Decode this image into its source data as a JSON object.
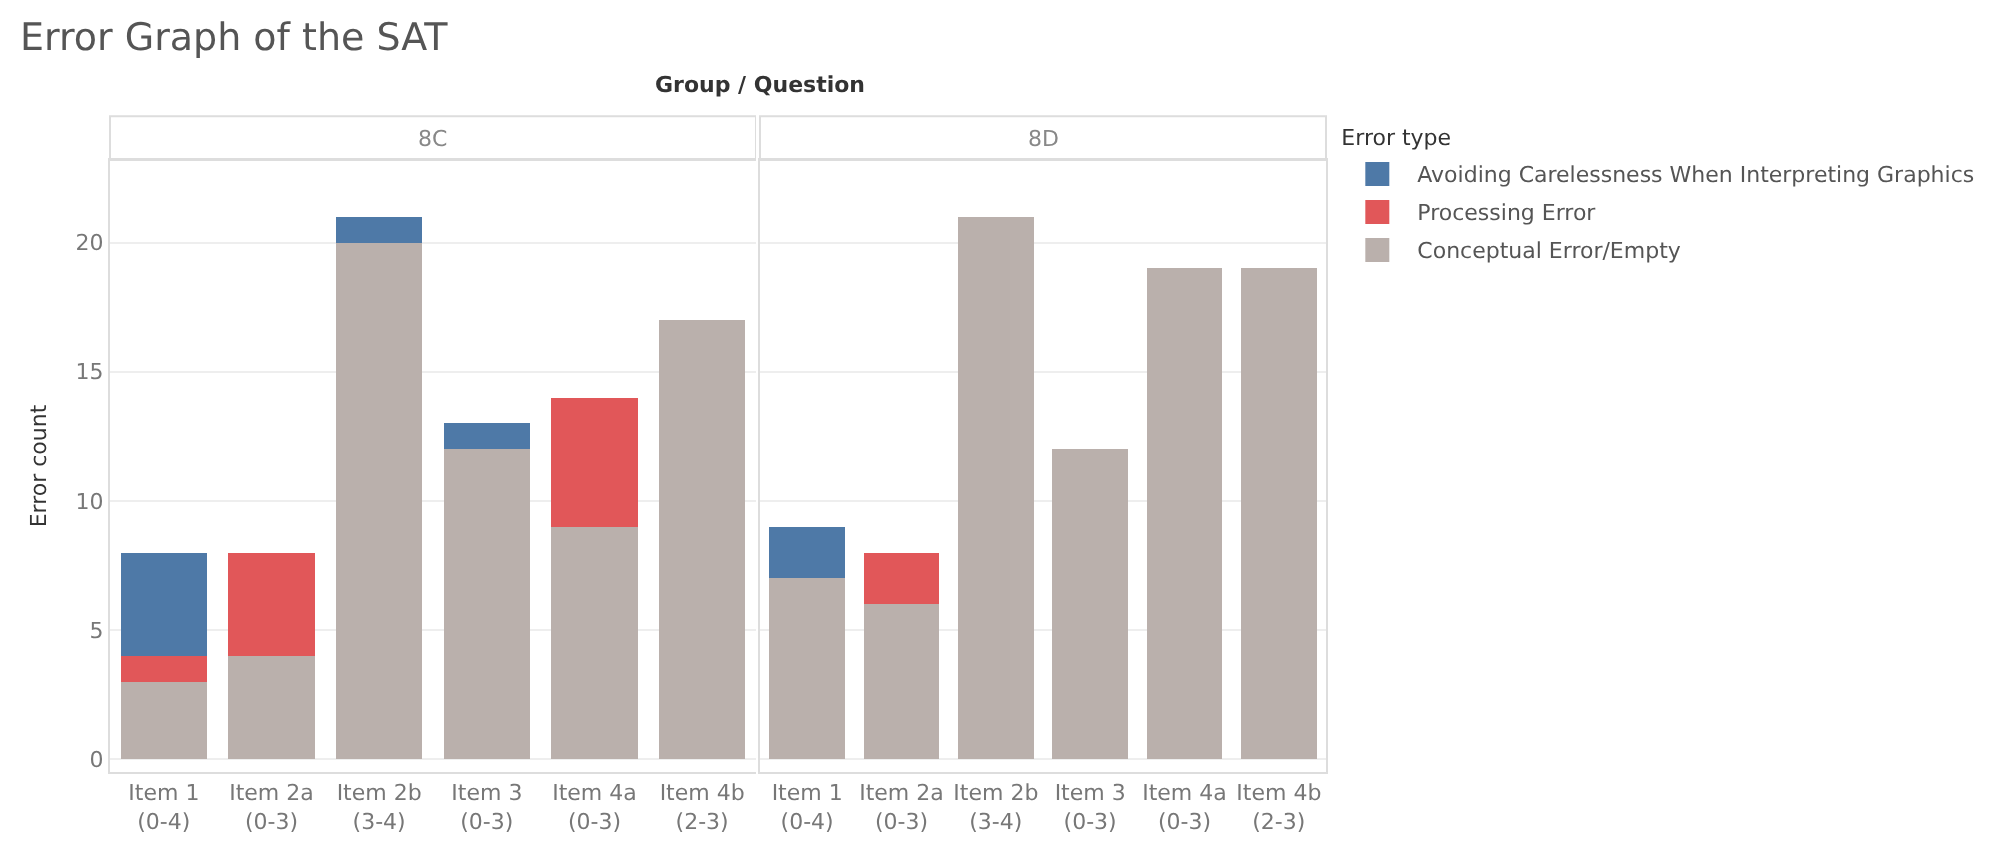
{
  "chart_data": [
    {
      "type": "bar",
      "title": "Error Graph of the SAT",
      "annotations": [
        "Group / Question"
      ],
      "subtitle": "8C",
      "ylabel": "Error count",
      "categories": [
        "Item 1 (0-4)",
        "Item 2a (0-3)",
        "Item 2b (3-4)",
        "Item 3 (0-3)",
        "Item 4a (0-3)",
        "Item 4b (2-3)"
      ],
      "stacked": true,
      "ylim": [
        -0.5,
        23.2
      ],
      "yticks": [
        0,
        5,
        10,
        15,
        20
      ],
      "grid": "y",
      "legend": false,
      "series": [
        {
          "color": "#bab0ac",
          "values": [
            3,
            4,
            20,
            12,
            9,
            17
          ]
        },
        {
          "color": "#e15759",
          "values": [
            1,
            4,
            0,
            0,
            5,
            0
          ]
        },
        {
          "color": "#4e79a7",
          "values": [
            4,
            0,
            1,
            1,
            0,
            0
          ]
        }
      ]
    },
    {
      "type": "bar",
      "subtitle": "8D",
      "categories": [
        "Item 1 (0-4)",
        "Item 2a (0-3)",
        "Item 2b (3-4)",
        "Item 3 (0-3)",
        "Item 4a (0-3)",
        "Item 4b (2-3)"
      ],
      "stacked": true,
      "ylim": [
        -0.5,
        23.2
      ],
      "yticks": [
        0,
        5,
        10,
        15,
        20
      ],
      "grid": "y",
      "tick_labels": "x",
      "legend": "right",
      "legend_title": "Error type",
      "series": [
        {
          "name": "Conceptual Error/Empty",
          "color": "#bab0ac",
          "values": [
            7,
            6,
            21,
            12,
            19,
            19
          ]
        },
        {
          "name": "Processing Error",
          "color": "#e15759",
          "values": [
            0,
            2,
            0,
            0,
            0,
            0
          ]
        },
        {
          "name": "Avoiding Carelessness When Interpreting Graphics",
          "color": "#4e79a7",
          "values": [
            2,
            0,
            0,
            0,
            0,
            0
          ]
        }
      ]
    }
  ]
}
